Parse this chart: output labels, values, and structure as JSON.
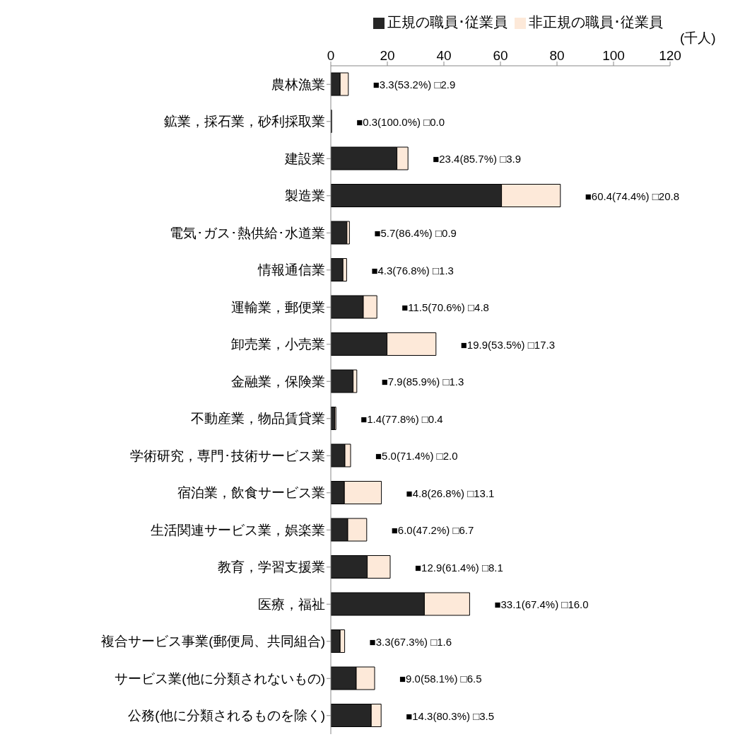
{
  "chart_data": {
    "type": "bar",
    "orientation": "horizontal",
    "stacked": true,
    "xlabel": "(千人)",
    "legend": "top right",
    "grid": false,
    "categories": [
      "農林漁業",
      "鉱業，採石業，砂利採取業",
      "建設業",
      "製造業",
      "電気･ガス･熱供給･水道業",
      "情報通信業",
      "運輸業，郵便業",
      "卸売業，小売業",
      "金融業，保険業",
      "不動産業，物品賃貸業",
      "学術研究，専門･技術サービス業",
      "宿泊業，飲食サービス業",
      "生活関連サービス業，娯楽業",
      "教育，学習支援業",
      "医療，福祉",
      "複合サービス事業(郵便局、共同組合)",
      "サービス業(他に分類されないもの)",
      "公務(他に分類されるものを除く)"
    ],
    "xlim": [
      0,
      120
    ],
    "xticks": [
      0,
      20,
      40,
      60,
      80,
      100,
      120
    ],
    "series": [
      {
        "name": "正規の職員･従業員",
        "color": "#262626",
        "values": [
          3.3,
          0.3,
          23.4,
          60.4,
          5.7,
          4.3,
          11.5,
          19.9,
          7.9,
          1.4,
          5.0,
          4.8,
          6.0,
          12.9,
          33.1,
          3.3,
          9.0,
          14.3
        ]
      },
      {
        "name": "非正規の職員･従業員",
        "color": "#fde9d9",
        "values": [
          2.9,
          0.0,
          3.9,
          20.8,
          0.9,
          1.3,
          4.8,
          17.3,
          1.3,
          0.4,
          2.0,
          13.1,
          6.7,
          8.1,
          16.0,
          1.6,
          6.5,
          3.5
        ],
        "value_labels": [
          "■3.3(53.2%) □2.9",
          "■0.3(100.0%) □0.0",
          "■23.4(85.7%) □3.9",
          "■60.4(74.4%) □20.8",
          "■5.7(86.4%) □0.9",
          "■4.3(76.8%) □1.3",
          "■11.5(70.6%) □4.8",
          "■19.9(53.5%) □17.3",
          "■7.9(85.9%) □1.3",
          "■1.4(77.8%) □0.4",
          "■5.0(71.4%) □2.0",
          "■4.8(26.8%) □13.1",
          "■6.0(47.2%) □6.7",
          "■12.9(61.4%) □8.1",
          "■33.1(67.4%) □16.0",
          "■3.3(67.3%) □1.6",
          "■9.0(58.1%) □6.5",
          "■14.3(80.3%) □3.5"
        ]
      }
    ]
  }
}
